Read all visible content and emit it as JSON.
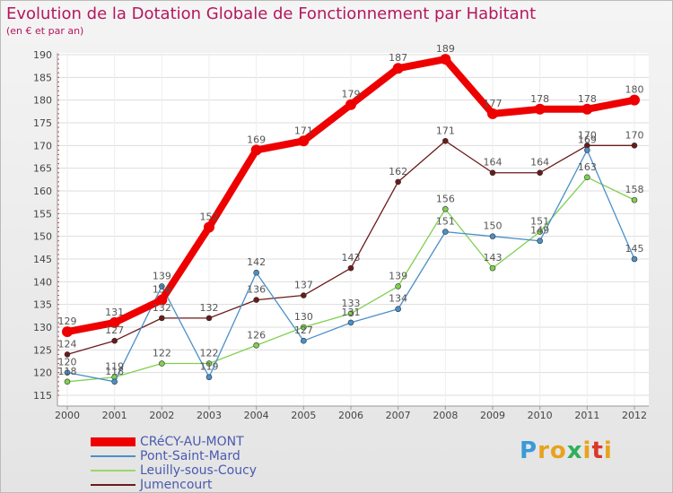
{
  "header": {
    "title": "Evolution de la Dotation Globale de Fonctionnement par Habitant",
    "subtitle": "(en € et par an)"
  },
  "logo": {
    "letters": [
      "P",
      "r",
      "o",
      "x",
      "i",
      "t",
      "i"
    ],
    "colors": [
      "#3a9ad9",
      "#e8a21c",
      "#e8a21c",
      "#2fb05c",
      "#e8a21c",
      "#d9382b",
      "#e8a21c"
    ]
  },
  "chart_data": {
    "type": "line",
    "title": "Evolution de la Dotation Globale de Fonctionnement par Habitant",
    "subtitle": "(en € et par an)",
    "xlabel": "",
    "ylabel": "",
    "ylim": [
      115,
      190
    ],
    "yticks": [
      115,
      120,
      125,
      130,
      135,
      140,
      145,
      150,
      155,
      160,
      165,
      170,
      175,
      180,
      185,
      190
    ],
    "categories": [
      "2000",
      "2001",
      "2002",
      "2003",
      "2004",
      "2005",
      "2006",
      "2007",
      "2008",
      "2009",
      "2010",
      "2011",
      "2012"
    ],
    "legend_position": "bottom-left",
    "series": [
      {
        "name": "CRéCY-AU-MONT",
        "color": "#ee0000",
        "values": [
          129,
          131,
          136,
          152,
          169,
          171,
          179,
          187,
          189,
          177,
          178,
          178,
          180
        ],
        "labels": [
          "129",
          "131",
          "136",
          "152",
          "169",
          "171",
          "179",
          "187",
          "189",
          "177",
          "178",
          "178",
          "180"
        ],
        "legend_color": "#ee0000"
      },
      {
        "name": "Pont-Saint-Mard",
        "color": "#4a90c9",
        "values": [
          120,
          118,
          139,
          119,
          142,
          127,
          131,
          134,
          151,
          150,
          149,
          169,
          145
        ],
        "labels": [
          "120",
          "118",
          "139",
          "119",
          "142",
          "127",
          "131",
          "134",
          "151",
          "150",
          "149",
          "169",
          "145"
        ],
        "legend_color": "#4a90c9"
      },
      {
        "name": "Leuilly-sous-Coucy",
        "color": "#7fd050",
        "values": [
          118,
          119,
          122,
          122,
          126,
          130,
          133,
          139,
          156,
          143,
          151,
          163,
          158
        ],
        "labels": [
          "118",
          "119",
          "122",
          "122",
          "126",
          "130",
          "133",
          "139",
          "156",
          "143",
          "151",
          "163",
          "158"
        ],
        "legend_color": "#9ad86a"
      },
      {
        "name": "Jumencourt",
        "color": "#6b1a1a",
        "values": [
          124,
          127,
          132,
          132,
          136,
          137,
          143,
          162,
          171,
          164,
          164,
          170,
          170
        ],
        "labels": [
          "124",
          "127",
          "132",
          "132",
          "136",
          "137",
          "143",
          "162",
          "171",
          "164",
          "164",
          "170",
          "170"
        ],
        "legend_color": "#6b1a1a"
      }
    ]
  }
}
